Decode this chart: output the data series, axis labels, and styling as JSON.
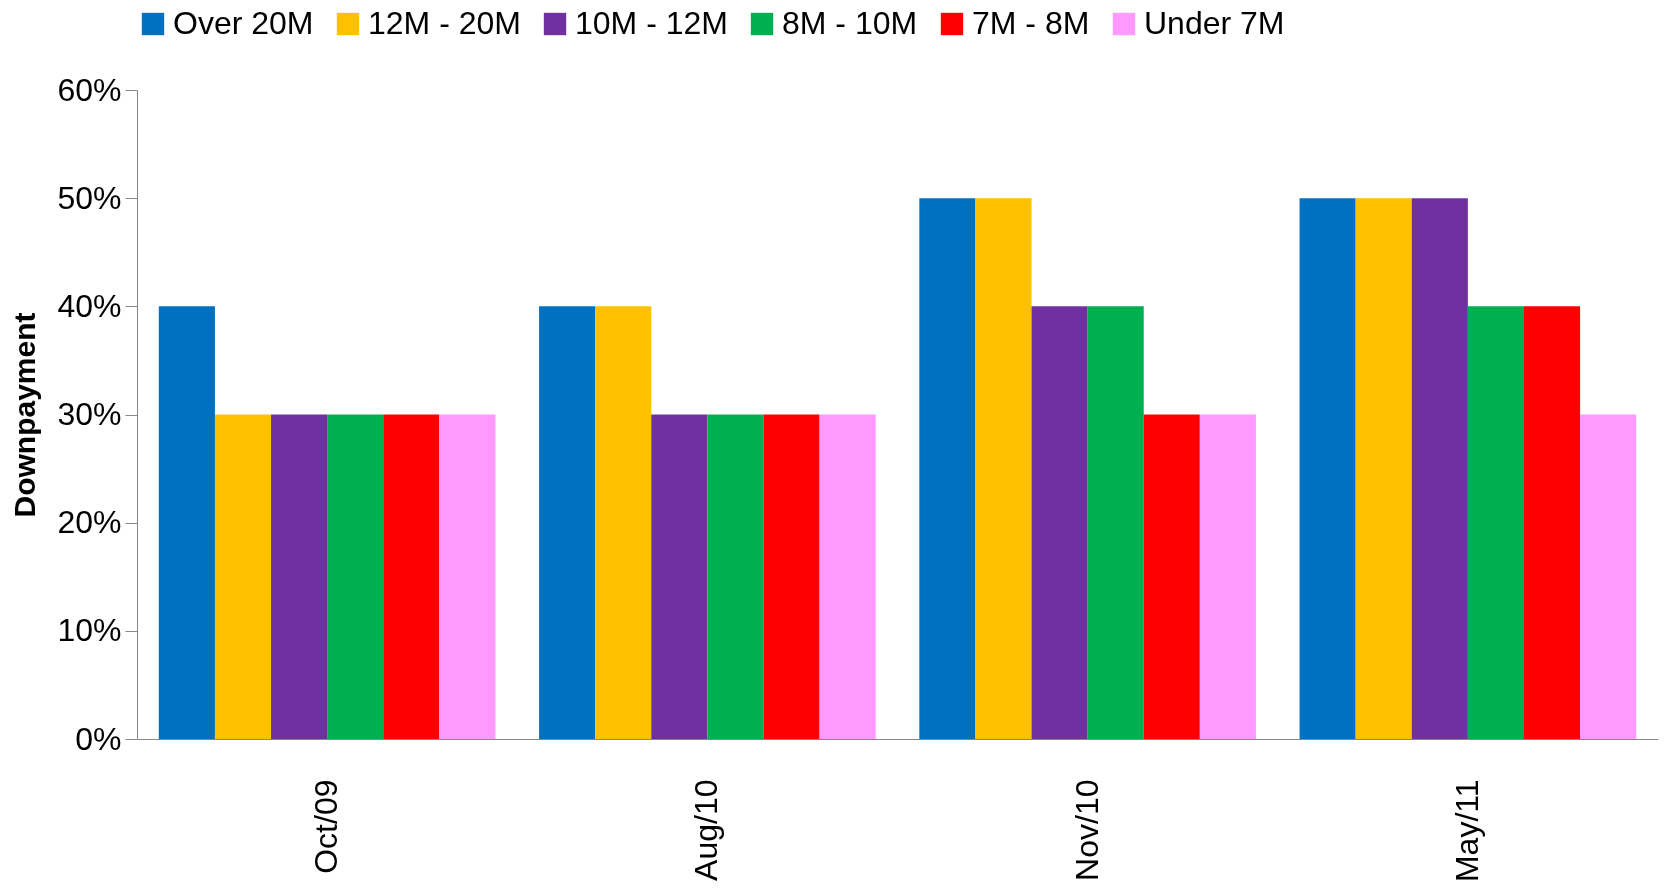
{
  "chart_data": {
    "type": "bar",
    "ylabel": "Downpayment",
    "categories": [
      "Oct/09",
      "Aug/10",
      "Nov/10",
      "May/11"
    ],
    "series": [
      {
        "name": "Over 20M",
        "color": "#0070c0",
        "values": [
          40,
          40,
          50,
          50
        ]
      },
      {
        "name": "12M - 20M",
        "color": "#ffc000",
        "values": [
          30,
          40,
          50,
          50
        ]
      },
      {
        "name": "10M - 12M",
        "color": "#7030a0",
        "values": [
          30,
          30,
          40,
          50
        ]
      },
      {
        "name": "8M - 10M",
        "color": "#00b050",
        "values": [
          30,
          30,
          40,
          40
        ]
      },
      {
        "name": "7M - 8M",
        "color": "#ff0000",
        "values": [
          30,
          30,
          30,
          40
        ]
      },
      {
        "name": "Under 7M",
        "color": "#ff99ff",
        "values": [
          30,
          30,
          30,
          30
        ]
      }
    ],
    "ylim": [
      0,
      60
    ],
    "yticks": [
      {
        "value": 0,
        "label": "0%"
      },
      {
        "value": 10,
        "label": "10%"
      },
      {
        "value": 20,
        "label": "20%"
      },
      {
        "value": 30,
        "label": "30%"
      },
      {
        "value": 40,
        "label": "40%"
      },
      {
        "value": 50,
        "label": "50%"
      },
      {
        "value": 60,
        "label": "60%"
      }
    ],
    "grid": false,
    "legend": "top"
  }
}
